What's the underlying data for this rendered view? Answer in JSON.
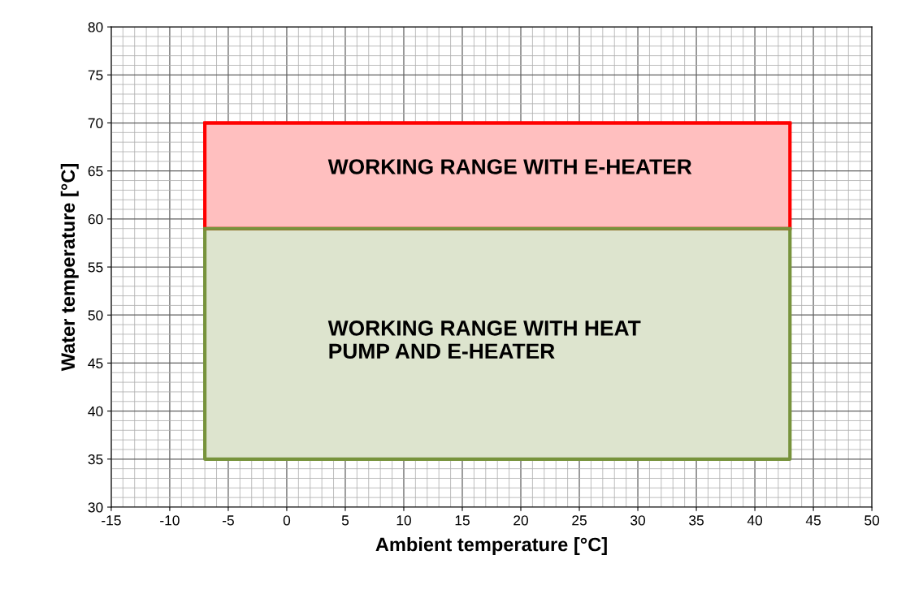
{
  "chart_data": {
    "type": "line",
    "xlabel": "Ambient temperature [°C]",
    "ylabel": "Water temperature [°C]",
    "x": [
      -7,
      43
    ],
    "series": [
      {
        "color": "#77933c",
        "values": [
          59,
          59
        ],
        "lower": [
          35,
          35
        ],
        "upper": [
          59,
          59
        ]
      },
      {
        "color": "#ff0000",
        "values": [
          70,
          70
        ],
        "lower": [
          59,
          59
        ],
        "upper": [
          70,
          70
        ]
      }
    ],
    "xlim": [
      -15,
      50
    ],
    "xticks": [
      -15,
      -10,
      -5,
      0,
      5,
      10,
      15,
      20,
      25,
      30,
      35,
      40,
      45,
      50
    ],
    "ylim": [
      30,
      80
    ],
    "yticks": [
      30,
      35,
      40,
      45,
      50,
      55,
      60,
      65,
      70,
      75,
      80
    ],
    "grid": true,
    "legend": false,
    "annotations": [
      "WORKING RANGE WITH E-HEATER",
      "WORKING RANGE WITH HEAT\nPUMP AND E-HEATER"
    ]
  }
}
